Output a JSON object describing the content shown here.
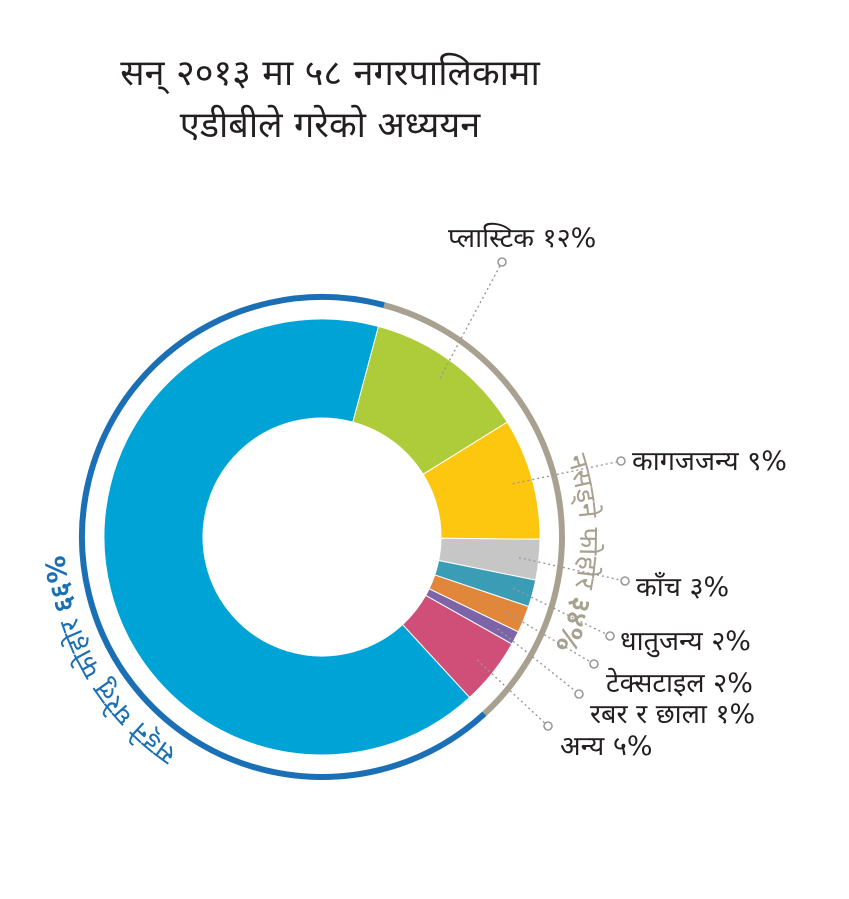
{
  "title": {
    "line1": "सन् २०१३ मा ५८ नगरपालिकामा",
    "line2": "एडीबीले गरेको अध्ययन"
  },
  "chart_data": {
    "type": "pie",
    "variant": "donut",
    "slices": [
      {
        "label": "सड्ने घरेलु फोहोर",
        "value": 66,
        "color": "#00a3d6",
        "labeled": false
      },
      {
        "label": "प्लास्टिक १२%",
        "value": 12,
        "color": "#aecb3a",
        "labeled": true
      },
      {
        "label": "कागजजन्य ९%",
        "value": 9,
        "color": "#fdc70f",
        "labeled": true
      },
      {
        "label": "काँच ३%",
        "value": 3,
        "color": "#c6c6c6",
        "labeled": true
      },
      {
        "label": "धातुजन्य २%",
        "value": 2,
        "color": "#3b9db5",
        "labeled": true
      },
      {
        "label": "टेक्सटाइल २%",
        "value": 2,
        "color": "#e1873c",
        "labeled": true
      },
      {
        "label": "रबर र छाला १%",
        "value": 1,
        "color": "#7b64a7",
        "labeled": true
      },
      {
        "label": "अन्य ५%",
        "value": 5,
        "color": "#cf4f78",
        "labeled": true
      }
    ],
    "groups": [
      {
        "label": "सड्ने घरेलु फोहोर",
        "pct_text": "६६%",
        "value": 66,
        "color": "#1a6fb5"
      },
      {
        "label": "नसड्ने फोहोर",
        "pct_text": "३४%",
        "value": 34,
        "color": "#a8a190"
      }
    ],
    "leader_color": "#999999"
  }
}
